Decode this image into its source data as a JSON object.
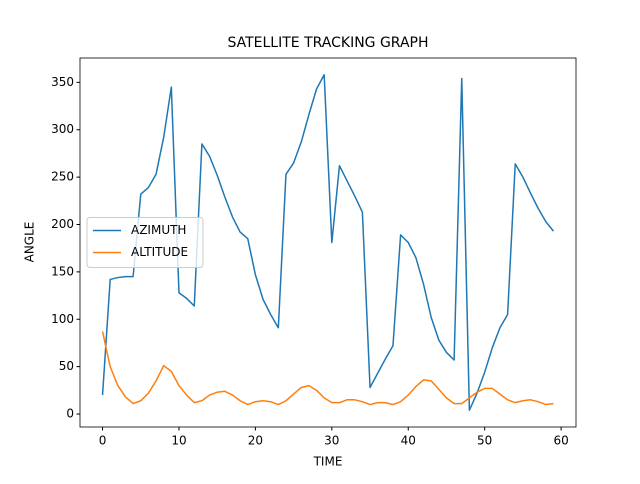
{
  "chart_data": {
    "type": "line",
    "title": "SATELLITE TRACKING GRAPH",
    "xlabel": "TIME",
    "ylabel": "ANGLE",
    "x": [
      0,
      1,
      2,
      3,
      4,
      5,
      6,
      7,
      8,
      9,
      10,
      11,
      12,
      13,
      14,
      15,
      16,
      17,
      18,
      19,
      20,
      21,
      22,
      23,
      24,
      25,
      26,
      27,
      28,
      29,
      30,
      31,
      32,
      33,
      34,
      35,
      36,
      37,
      38,
      39,
      40,
      41,
      42,
      43,
      44,
      45,
      46,
      47,
      48,
      49,
      50,
      51,
      52,
      53,
      54,
      55,
      56,
      57,
      58,
      59
    ],
    "series": [
      {
        "name": "AZIMUTH",
        "color": "#1f77b4",
        "values": [
          20,
          142,
          144,
          145,
          145,
          232,
          239,
          253,
          292,
          345,
          128,
          122,
          114,
          285,
          272,
          252,
          229,
          208,
          192,
          185,
          147,
          121,
          105,
          91,
          253,
          265,
          287,
          316,
          343,
          358,
          181,
          262,
          246,
          230,
          213,
          28,
          43,
          58,
          72,
          189,
          181,
          165,
          137,
          102,
          78,
          65,
          57,
          354,
          4,
          22,
          44,
          70,
          91,
          105,
          264,
          250,
          233,
          217,
          203,
          193
        ]
      },
      {
        "name": "ALTITUDE",
        "color": "#ff7f0e",
        "values": [
          87,
          50,
          30,
          18,
          11,
          14,
          22,
          35,
          51,
          45,
          30,
          20,
          12,
          14,
          20,
          23,
          24,
          20,
          14,
          10,
          13,
          14,
          13,
          10,
          14,
          21,
          28,
          30,
          25,
          17,
          12,
          12,
          15,
          15,
          13,
          10,
          12,
          12,
          10,
          13,
          20,
          29,
          36,
          35,
          26,
          17,
          11,
          11,
          17,
          23,
          27,
          27,
          21,
          15,
          12,
          14,
          15,
          13,
          10,
          11
        ]
      }
    ],
    "xlim": [
      -2.95,
      61.95
    ],
    "xticks": [
      0,
      10,
      20,
      30,
      40,
      50,
      60
    ],
    "ylim": [
      -13.7,
      375.7
    ],
    "yticks": [
      0,
      50,
      100,
      150,
      200,
      250,
      300,
      350
    ],
    "legend": "center left"
  }
}
